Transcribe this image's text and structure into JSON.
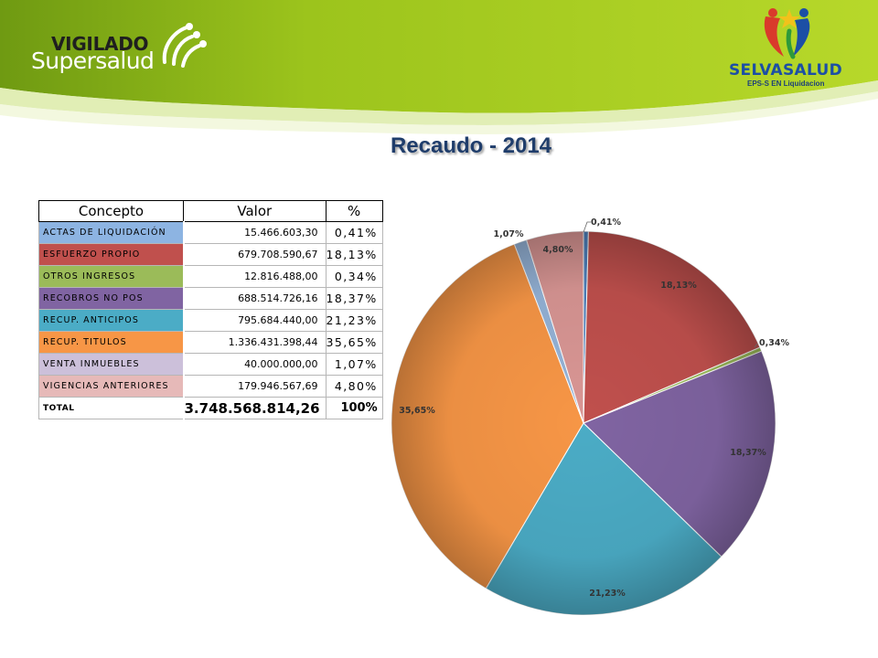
{
  "logos": {
    "left_top": "VIGILADO",
    "left_bottom": "Supersalud",
    "right_name": "SELVASALUD",
    "right_tagline": "EPS-S EN Liquidacion"
  },
  "title": "Recaudo - 2014",
  "table": {
    "headers": [
      "Concepto",
      "Valor",
      "%"
    ],
    "rows": [
      {
        "concept": "ACTAS DE LIQUIDACIÓN",
        "value": "15.466.603,30",
        "pct": "0,41%",
        "color": "#8db4e2"
      },
      {
        "concept": "ESFUERZO PROPIO",
        "value": "679.708.590,67",
        "pct": "18,13%",
        "color": "#c0504d"
      },
      {
        "concept": "OTROS INGRESOS",
        "value": "12.816.488,00",
        "pct": "0,34%",
        "color": "#9bbb59"
      },
      {
        "concept": "RECOBROS NO POS",
        "value": "688.514.726,16",
        "pct": "18,37%",
        "color": "#8064a2"
      },
      {
        "concept": "RECUP. ANTICIPOS",
        "value": "795.684.440,00",
        "pct": "21,23%",
        "color": "#4bacc6"
      },
      {
        "concept": "RECUP. TITULOS",
        "value": "1.336.431.398,44",
        "pct": "35,65%",
        "color": "#f79646"
      },
      {
        "concept": "VENTA INMUEBLES",
        "value": "40.000.000,00",
        "pct": "1,07%",
        "color": "#ccc0da"
      },
      {
        "concept": "VIGENCIAS ANTERIORES",
        "value": "179.946.567,69",
        "pct": "4,80%",
        "color": "#e6b9b8"
      }
    ],
    "total": {
      "concept": "TOTAL",
      "value": "3.748.568.814,26",
      "pct": "100%"
    }
  },
  "chart_data": {
    "type": "pie",
    "title": "Recaudo - 2014",
    "start_angle_deg": 0,
    "direction": "clockwise",
    "legend": "none",
    "slices": [
      {
        "label": "0,41%",
        "value": 0.41,
        "color": "#4f81bd"
      },
      {
        "label": "18,13%",
        "value": 18.13,
        "color": "#c0504d"
      },
      {
        "label": "0,34%",
        "value": 0.34,
        "color": "#9bbb59"
      },
      {
        "label": "18,37%",
        "value": 18.37,
        "color": "#8064a2"
      },
      {
        "label": "21,23%",
        "value": 21.23,
        "color": "#4bacc6"
      },
      {
        "label": "35,65%",
        "value": 35.65,
        "color": "#f79646"
      },
      {
        "label": "1,07%",
        "value": 1.07,
        "color": "#95b3d7"
      },
      {
        "label": "4,80%",
        "value": 4.8,
        "color": "#d99694"
      }
    ]
  }
}
